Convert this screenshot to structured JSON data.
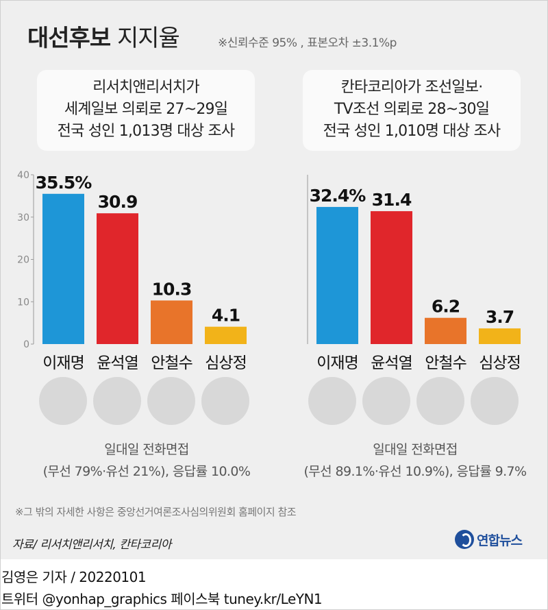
{
  "title_bold": "대선후보",
  "title_light": "지지율",
  "note": "※신뢰수준 95% , 표본오차 ±3.1%p",
  "colors": {
    "lee": "#1e96d7",
    "yoon": "#e0262b",
    "ahn": "#e8742a",
    "sim": "#f2b319"
  },
  "left_box": [
    "리서치앤리서치가",
    "세계일보 의뢰로 27~29일",
    "전국 성인 1,013명 대상 조사"
  ],
  "right_box": [
    "칸타코리아가 조선일보·",
    "TV조선 의뢰로 28~30일",
    "전국 성인 1,010명 대상 조사"
  ],
  "left_method": [
    "일대일 전화면접",
    "(무선 79%·유선 21%), 응답률 10.0%"
  ],
  "right_method": [
    "일대일 전화면접",
    "(무선 89.1%·유선 10.9%), 응답률 9.7%"
  ],
  "footnote": "※그 밖의 자세한 사항은 중앙선거여론조사심의위원회 홈페이지 참조",
  "source": "자료/ 리서치앤리서치, 칸타코리아",
  "logo_text": "연합뉴스",
  "credit_line1": "김영은 기자 / 20220101",
  "credit_line2": "트위터 @yonhap_graphics  페이스북 tuney.kr/LeYN1",
  "chart_data": [
    {
      "type": "bar",
      "categories": [
        "이재명",
        "윤석열",
        "안철수",
        "심상정"
      ],
      "values": [
        35.5,
        30.9,
        10.3,
        4.1
      ],
      "data_labels": [
        "35.5%",
        "30.9",
        "10.3",
        "4.1"
      ],
      "yticks": [
        0,
        10,
        20,
        30,
        40
      ],
      "ylim": [
        0,
        40
      ],
      "title": "",
      "xlabel": "",
      "ylabel": ""
    },
    {
      "type": "bar",
      "categories": [
        "이재명",
        "윤석열",
        "안철수",
        "심상정"
      ],
      "values": [
        32.4,
        31.4,
        6.2,
        3.7
      ],
      "data_labels": [
        "32.4%",
        "31.4",
        "6.2",
        "3.7"
      ],
      "yticks": [],
      "ylim": [
        0,
        40
      ],
      "title": "",
      "xlabel": "",
      "ylabel": ""
    }
  ]
}
